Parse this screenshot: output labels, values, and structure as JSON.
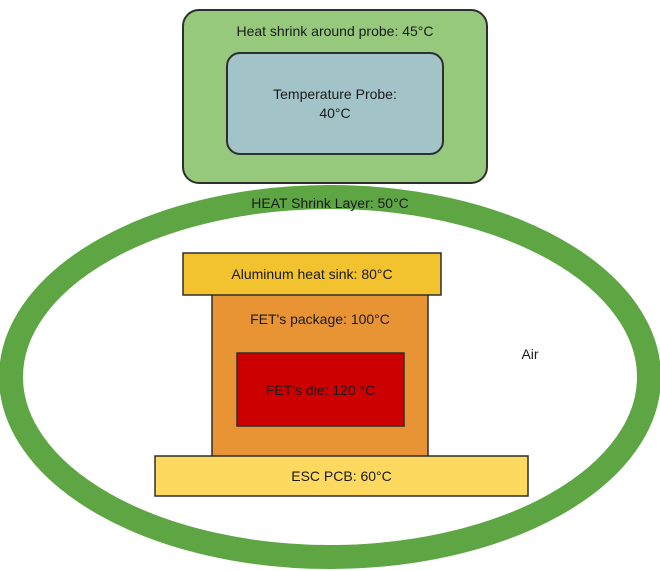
{
  "diagram": {
    "heat_shrink_probe": {
      "label": "Heat shrink around probe: 45°C",
      "fill": "#97c97c",
      "stroke": "#2e2e2e"
    },
    "temperature_probe": {
      "label_line1": "Temperature Probe:",
      "label_line2": "40°C",
      "fill": "#a2c4c9",
      "stroke": "#2e2e2e"
    },
    "heat_shrink_layer": {
      "label": "HEAT Shrink Layer: 50°C",
      "stroke": "#5ea544"
    },
    "aluminum_heat_sink": {
      "label": "Aluminum heat sink: 80°C",
      "fill": "#f2c22f",
      "stroke": "#2e2e2e"
    },
    "fet_package": {
      "label": "FET's package: 100°C",
      "fill": "#e89434",
      "stroke": "#2e2e2e"
    },
    "fet_die": {
      "label": "FET's die: 120 °C",
      "fill": "#cc0000",
      "stroke": "#2e2e2e"
    },
    "esc_pcb": {
      "label": "ESC PCB: 60°C",
      "fill": "#fdd95f",
      "stroke": "#2e2e2e"
    },
    "air": {
      "label": "Air"
    }
  }
}
